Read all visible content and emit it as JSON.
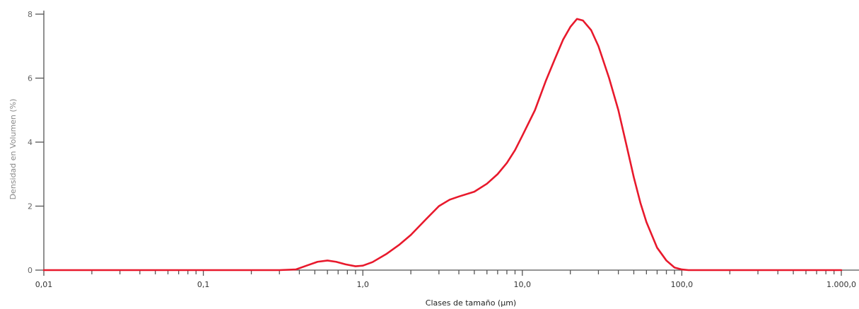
{
  "chart_data": {
    "type": "line",
    "title": "",
    "xlabel": "Clases de tamaño (µm)",
    "ylabel": "Densidad en Volumen (%)",
    "xscale": "log",
    "xlim": [
      0.01,
      1000
    ],
    "ylim": [
      0,
      8
    ],
    "x_tick_labels": [
      "0,01",
      "0,1",
      "1,0",
      "10,0",
      "100,0",
      "1.000,0"
    ],
    "x_tick_values": [
      0.01,
      0.1,
      1,
      10,
      100,
      1000
    ],
    "y_ticks": [
      0,
      2,
      4,
      6,
      8
    ],
    "grid": false,
    "legend": "none",
    "series": [
      {
        "color": "#e8192c",
        "x": [
          0.01,
          0.1,
          0.3,
          0.38,
          0.45,
          0.52,
          0.6,
          0.68,
          0.78,
          0.9,
          1.0,
          1.15,
          1.4,
          1.7,
          2.0,
          2.5,
          3.0,
          3.5,
          4.0,
          5.0,
          6.0,
          7.0,
          8.0,
          9.0,
          10.0,
          12.0,
          14.0,
          16.0,
          18.0,
          20.0,
          22.0,
          24.0,
          27.0,
          30.0,
          35.0,
          40.0,
          45.0,
          50.0,
          55.0,
          60.0,
          70.0,
          80.0,
          90.0,
          100.0,
          110.0,
          130.0,
          200.0,
          1000.0
        ],
        "y": [
          0,
          0,
          0,
          0.02,
          0.15,
          0.26,
          0.3,
          0.26,
          0.18,
          0.12,
          0.14,
          0.25,
          0.5,
          0.8,
          1.1,
          1.6,
          2.0,
          2.2,
          2.3,
          2.45,
          2.7,
          3.0,
          3.35,
          3.75,
          4.2,
          5.0,
          5.9,
          6.6,
          7.2,
          7.6,
          7.85,
          7.8,
          7.5,
          7.0,
          6.0,
          5.0,
          3.9,
          2.9,
          2.1,
          1.5,
          0.7,
          0.3,
          0.08,
          0.02,
          0,
          0,
          0,
          0
        ]
      }
    ]
  }
}
